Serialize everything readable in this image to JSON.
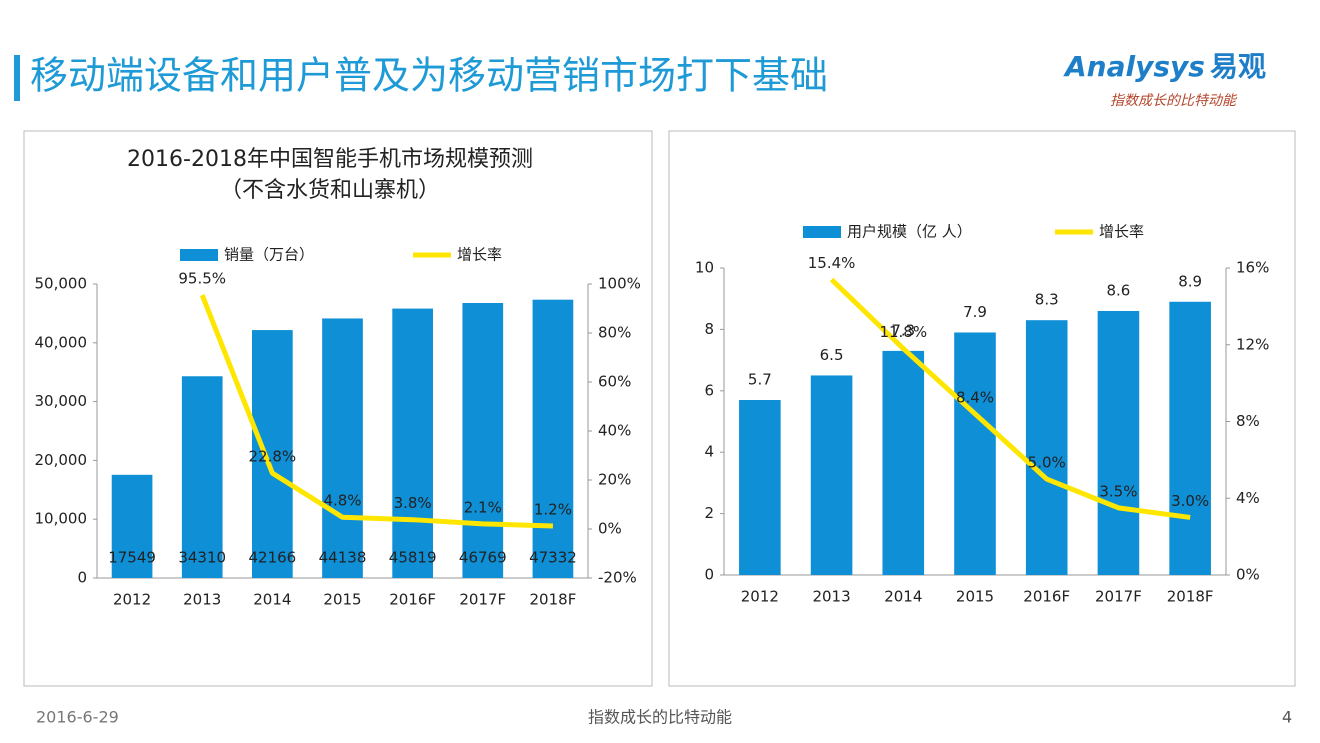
{
  "header": {
    "title": "移动端设备和用户普及为移动营销市场打下基础"
  },
  "logo": {
    "brand": "Analysys",
    "name": "易观",
    "slogan": "指数成长的比特动能"
  },
  "footer": {
    "date": "2016-6-29",
    "center": "指数成长的比特动能",
    "page": "4"
  },
  "chart_data": [
    {
      "type": "bar",
      "title": "2016-2018年中国智能手机市场规模预测",
      "subtitle": "（不含水货和山寨机）",
      "categories": [
        "2012",
        "2013",
        "2014",
        "2015",
        "2016F",
        "2017F",
        "2018F"
      ],
      "series": [
        {
          "name": "销量（万台）",
          "color": "#0e8fd6",
          "values": [
            17549,
            34310,
            42166,
            44138,
            45819,
            46769,
            47332
          ]
        },
        {
          "name": "增长率",
          "type": "line",
          "axis": "y2",
          "color": "#ffe600",
          "values": [
            null,
            95.5,
            22.8,
            4.8,
            3.8,
            2.1,
            1.2
          ],
          "value_labels": [
            null,
            "95.5%",
            "22.8%",
            "4.8%",
            "3.8%",
            "2.1%",
            "1.2%"
          ]
        }
      ],
      "ylim": [
        0,
        50000
      ],
      "yticks": [
        0,
        {
          "value": 10000,
          "label": "10,000"
        },
        {
          "value": 20000,
          "label": "20,000"
        },
        {
          "value": 30000,
          "label": "30,000"
        },
        {
          "value": 40000,
          "label": "40,000"
        },
        {
          "value": 50000,
          "label": "50,000"
        }
      ],
      "y2lim": [
        -20,
        100
      ],
      "y2ticks": [
        {
          "value": -20,
          "label": "-20%"
        },
        {
          "value": 0,
          "label": "0%"
        },
        {
          "value": 20,
          "label": "20%"
        },
        {
          "value": 40,
          "label": "40%"
        },
        {
          "value": 60,
          "label": "60%"
        },
        {
          "value": 80,
          "label": "80%"
        },
        {
          "value": 100,
          "label": "100%"
        }
      ],
      "legend": "top"
    },
    {
      "type": "bar",
      "categories": [
        "2012",
        "2013",
        "2014",
        "2015",
        "2016F",
        "2017F",
        "2018F"
      ],
      "series": [
        {
          "name": "用户规模（亿 人）",
          "color": "#0e8fd6",
          "values": [
            5.7,
            6.5,
            7.3,
            7.9,
            8.3,
            8.6,
            8.9
          ]
        },
        {
          "name": "增长率",
          "type": "line",
          "axis": "y2",
          "color": "#ffe600",
          "values": [
            null,
            15.4,
            11.8,
            8.4,
            5.0,
            3.5,
            3.0
          ],
          "value_labels": [
            null,
            "15.4%",
            "11.8%",
            "8.4%",
            "5.0%",
            "3.5%",
            "3.0%"
          ]
        }
      ],
      "ylim": [
        0,
        10
      ],
      "yticks": [
        0,
        2,
        4,
        6,
        8,
        10
      ],
      "y2lim": [
        0,
        16
      ],
      "y2ticks": [
        {
          "value": 0,
          "label": "0%"
        },
        {
          "value": 4,
          "label": "4%"
        },
        {
          "value": 8,
          "label": "8%"
        },
        {
          "value": 12,
          "label": "12%"
        },
        {
          "value": 16,
          "label": "16%"
        }
      ],
      "legend": "top"
    }
  ]
}
